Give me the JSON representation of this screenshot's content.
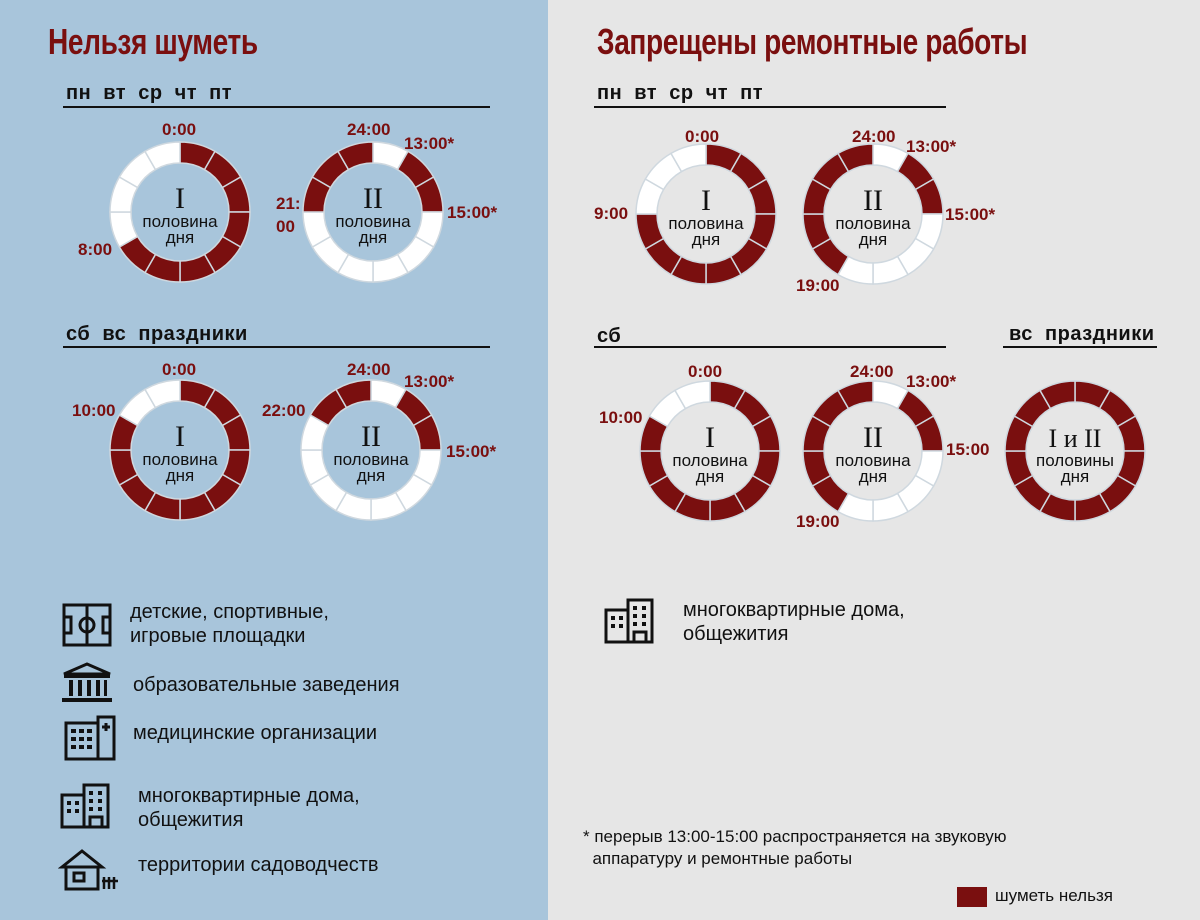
{
  "colors": {
    "forbidden": "#7a0f0f",
    "allowed": "#ffffff",
    "left_bg": "#a8c5db",
    "right_bg": "#e6e6e6"
  },
  "left": {
    "title": "Нельзя шуметь",
    "weekdays_label": "пн  вт  ср  чт  пт",
    "weekend_label": "сб  вс  праздники",
    "legend": [
      {
        "icon": "playground-icon",
        "text": "детские, спортивные,\nигровые площадки"
      },
      {
        "icon": "school-building-icon",
        "text": "образовательные заведения"
      },
      {
        "icon": "hospital-icon",
        "text": "медицинские организации"
      },
      {
        "icon": "apartment-building-icon",
        "text": "многоквартирные дома,\nобщежития"
      },
      {
        "icon": "house-icon",
        "text": "территории садоводчеств"
      }
    ]
  },
  "right": {
    "title": "Запрещены ремонтные работы",
    "weekdays_label": "пн  вт  ср  чт  пт",
    "saturday_label": "сб",
    "sunday_label": "вс  праздники",
    "legend": [
      {
        "icon": "apartment-building-icon",
        "text": "многоквартирные дома,\nобщежития"
      }
    ]
  },
  "dials": [
    {
      "id": "l-wd-1",
      "half": 1,
      "forbidden_hours": [
        [
          0,
          8
        ]
      ],
      "roman": "I",
      "line1": "половина",
      "line2": "дня",
      "labels": [
        "0:00",
        "8:00"
      ]
    },
    {
      "id": "l-wd-2",
      "half": 2,
      "forbidden_hours": [
        [
          13,
          15
        ],
        [
          21,
          24
        ]
      ],
      "roman": "II",
      "line1": "половина",
      "line2": "дня",
      "labels": [
        "24:00",
        "13:00*",
        "15:00*",
        "21:",
        "00"
      ]
    },
    {
      "id": "l-we-1",
      "half": 1,
      "forbidden_hours": [
        [
          0,
          10
        ]
      ],
      "roman": "I",
      "line1": "половина",
      "line2": "дня",
      "labels": [
        "0:00",
        "10:00"
      ]
    },
    {
      "id": "l-we-2",
      "half": 2,
      "forbidden_hours": [
        [
          13,
          15
        ],
        [
          22,
          24
        ]
      ],
      "roman": "II",
      "line1": "половина",
      "line2": "дня",
      "labels": [
        "24:00",
        "13:00*",
        "15:00*",
        "22:00"
      ]
    },
    {
      "id": "r-wd-1",
      "half": 1,
      "forbidden_hours": [
        [
          0,
          9
        ]
      ],
      "roman": "I",
      "line1": "половина",
      "line2": "дня",
      "labels": [
        "0:00",
        "9:00"
      ]
    },
    {
      "id": "r-wd-2",
      "half": 2,
      "forbidden_hours": [
        [
          13,
          15
        ],
        [
          19,
          24
        ]
      ],
      "roman": "II",
      "line1": "половина",
      "line2": "дня",
      "labels": [
        "24:00",
        "13:00*",
        "15:00*",
        "19:00"
      ]
    },
    {
      "id": "r-sa-1",
      "half": 1,
      "forbidden_hours": [
        [
          0,
          10
        ]
      ],
      "roman": "I",
      "line1": "половина",
      "line2": "дня",
      "labels": [
        "0:00",
        "10:00"
      ]
    },
    {
      "id": "r-sa-2",
      "half": 2,
      "forbidden_hours": [
        [
          13,
          15
        ],
        [
          19,
          24
        ]
      ],
      "roman": "II",
      "line1": "половина",
      "line2": "дня",
      "labels": [
        "24:00",
        "13:00*",
        "15:00",
        "19:00"
      ]
    },
    {
      "id": "r-su",
      "half": 0,
      "forbidden_hours": [
        [
          0,
          12
        ]
      ],
      "roman": "I и II",
      "line1": "половины",
      "line2": "дня",
      "labels": []
    }
  ],
  "footnote": "* перерыв 13:00-15:00 распространяется на звуковую\n  аппаратуру и ремонтные работы",
  "legend_swatch_label": "шуметь нельзя"
}
